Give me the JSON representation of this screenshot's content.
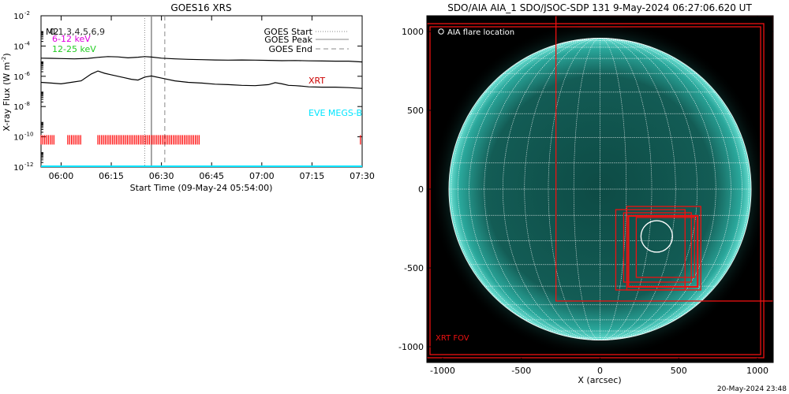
{
  "footer_timestamp": "20-May-2024 23:48",
  "colors": {
    "flux_line": "#000000",
    "xrt_marks": "#ff0000",
    "eve_line": "#00e5ff",
    "label_6_12": "#e000e0",
    "label_12_25": "#22cc22",
    "xrt_label": "#cc0000",
    "fov_boxes": "#ee1111",
    "solar_disk": "#1a9e92"
  },
  "chart_data": [
    {
      "type": "line",
      "title": "GOES16 XRS",
      "xlabel": "Start Time (09-May-24 05:54:00)",
      "ylabel_main": "X-ray Flux (W m",
      "ylabel_sup": "-2",
      "ylabel_end": ")",
      "ylog": true,
      "ylim_exp": [
        -12,
        -2
      ],
      "y_tick_exps": [
        -12,
        -10,
        -8,
        -6,
        -4,
        -2
      ],
      "x_tick_labels": [
        "06:00",
        "06:15",
        "06:30",
        "06:45",
        "07:00",
        "07:15",
        "07:30"
      ],
      "x_tick_minutes": [
        6,
        21,
        36,
        51,
        66,
        81,
        96
      ],
      "xlim_minutes": [
        0,
        96
      ],
      "legend_left": {
        "line1_a": "M2",
        "line1_b": "0.1,3,4,5,6,9",
        "line2": "6-12 keV",
        "line3": "12-25 keV"
      },
      "legend_right": {
        "start": "GOES Start",
        "peak": "GOES Peak",
        "end": "GOES End"
      },
      "markers": {
        "start": 31,
        "peak": 33,
        "end": 37
      },
      "series": [
        {
          "name": "",
          "x": [
            0,
            3,
            6,
            10,
            14,
            17,
            20,
            23,
            26,
            29,
            31,
            33,
            36,
            40,
            44,
            48,
            52,
            56,
            60,
            64,
            68,
            72,
            76,
            80,
            84,
            88,
            92,
            96
          ],
          "log_y": [
            -4.8,
            -4.81,
            -4.83,
            -4.85,
            -4.82,
            -4.75,
            -4.7,
            -4.72,
            -4.78,
            -4.74,
            -4.7,
            -4.73,
            -4.8,
            -4.85,
            -4.88,
            -4.9,
            -4.92,
            -4.93,
            -4.92,
            -4.93,
            -4.95,
            -4.97,
            -4.96,
            -4.98,
            -4.99,
            -5.0,
            -5.0,
            -5.05
          ]
        },
        {
          "name": "",
          "x": [
            0,
            3,
            6,
            9,
            12,
            15,
            17,
            19,
            21,
            23,
            25,
            27,
            29,
            31,
            33,
            36,
            40,
            44,
            48,
            52,
            56,
            60,
            64,
            68,
            70,
            72,
            74,
            76,
            78,
            80,
            84,
            88,
            92,
            96
          ],
          "log_y": [
            -6.4,
            -6.45,
            -6.5,
            -6.4,
            -6.3,
            -5.85,
            -5.65,
            -5.8,
            -5.9,
            -6.0,
            -6.1,
            -6.2,
            -6.25,
            -6.05,
            -5.98,
            -6.12,
            -6.3,
            -6.4,
            -6.45,
            -6.52,
            -6.55,
            -6.6,
            -6.62,
            -6.55,
            -6.42,
            -6.5,
            -6.6,
            -6.62,
            -6.65,
            -6.7,
            -6.72,
            -6.72,
            -6.75,
            -6.8
          ]
        }
      ],
      "xrt_label": "XRT",
      "xrt_obs_windows": [
        [
          0,
          4
        ],
        [
          8,
          12
        ],
        [
          17,
          47.5
        ],
        [
          95.5,
          96
        ]
      ],
      "xrt_obs_log_y": -10.2,
      "eve_label": "EVE MEGS-B",
      "eve_log_y": -12
    },
    {
      "type": "image",
      "title": "SDO/AIA AIA_1 SDO/JSOC-SDP 131  9-May-2024 06:27:06.620 UT",
      "xlabel": "X (arcsec)",
      "xlim": [
        -1100,
        1100
      ],
      "ylim": [
        -1100,
        1100
      ],
      "x_tick_labels": [
        "-1000",
        "-500",
        "0",
        "500",
        "1000"
      ],
      "x_ticks": [
        -1000,
        -500,
        0,
        500,
        1000
      ],
      "y_tick_labels": [
        "1000",
        "500",
        "0",
        "-500",
        "-1000"
      ],
      "y_ticks": [
        1000,
        500,
        0,
        -500,
        -1000
      ],
      "legend_text": "AIA flare location",
      "fov_label": "XRT FOV",
      "sun_radius_arcsec": 960,
      "flare_location": {
        "x": 360,
        "y": -300,
        "r": 100
      },
      "fov_boxes": [
        {
          "x1": -1080,
          "y1": -1050,
          "x2": 1020,
          "y2": 1030
        },
        {
          "x1": -1100,
          "y1": -1070,
          "x2": 1040,
          "y2": 1050
        },
        {
          "x1": -280,
          "y1": -710,
          "x2": 1100,
          "y2": 1100
        },
        {
          "x1": 170,
          "y1": -640,
          "x2": 640,
          "y2": -110
        },
        {
          "x1": 100,
          "y1": -640,
          "x2": 540,
          "y2": -130
        },
        {
          "x1": 180,
          "y1": -620,
          "x2": 620,
          "y2": -170
        },
        {
          "x1": 150,
          "y1": -590,
          "x2": 580,
          "y2": -150
        },
        {
          "x1": 230,
          "y1": -560,
          "x2": 600,
          "y2": -180
        }
      ]
    }
  ]
}
